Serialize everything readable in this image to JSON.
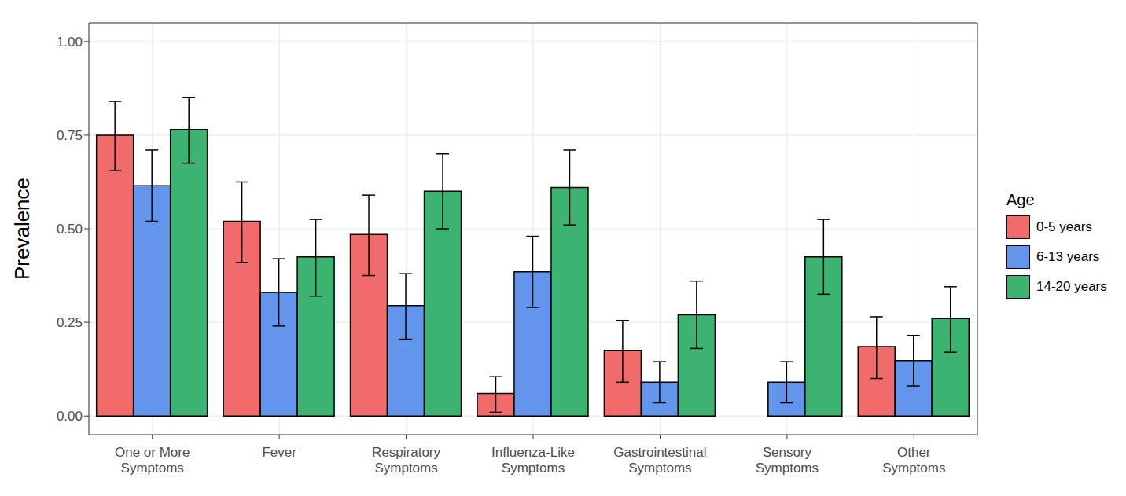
{
  "chart_data": {
    "type": "bar",
    "y_label": "Prevalence",
    "legend_title": "Age",
    "legend": "right",
    "grid": true,
    "categories": [
      "One or More Symptoms",
      "Fever",
      "Respiratory Symptoms",
      "Influenza-Like Symptoms",
      "Gastrointestinal Symptoms",
      "Sensory Symptoms",
      "Other Symptoms"
    ],
    "ylim": [
      -0.05,
      1.05
    ],
    "yticks": [
      {
        "value": 0,
        "label": "0.00"
      },
      {
        "value": 0.25,
        "label": "0.25"
      },
      {
        "value": 0.5,
        "label": "0.50"
      },
      {
        "value": 0.75,
        "label": "0.75"
      },
      {
        "value": 1,
        "label": "1.00"
      }
    ],
    "series": [
      {
        "name": "0-5 years",
        "color": "#f26b6b",
        "values": [
          0.75,
          0.52,
          0.485,
          0.06,
          0.175,
          0,
          0.185
        ],
        "ci": [
          [
            0.655,
            0.84
          ],
          [
            0.41,
            0.625
          ],
          [
            0.375,
            0.59
          ],
          [
            0.01,
            0.105
          ],
          [
            0.09,
            0.255
          ],
          null,
          [
            0.1,
            0.265
          ]
        ]
      },
      {
        "name": "6-13 years",
        "color": "#6495ed",
        "values": [
          0.615,
          0.33,
          0.295,
          0.385,
          0.09,
          0.09,
          0.148
        ],
        "ci": [
          [
            0.52,
            0.71
          ],
          [
            0.24,
            0.42
          ],
          [
            0.205,
            0.38
          ],
          [
            0.29,
            0.48
          ],
          [
            0.035,
            0.145
          ],
          [
            0.035,
            0.145
          ],
          [
            0.08,
            0.215
          ]
        ]
      },
      {
        "name": "14-20 years",
        "color": "#3cb371",
        "values": [
          0.765,
          0.425,
          0.6,
          0.61,
          0.27,
          0.425,
          0.26
        ],
        "ci": [
          [
            0.675,
            0.85
          ],
          [
            0.32,
            0.525
          ],
          [
            0.5,
            0.7
          ],
          [
            0.51,
            0.71
          ],
          [
            0.18,
            0.36
          ],
          [
            0.325,
            0.525
          ],
          [
            0.17,
            0.345
          ]
        ]
      }
    ]
  }
}
